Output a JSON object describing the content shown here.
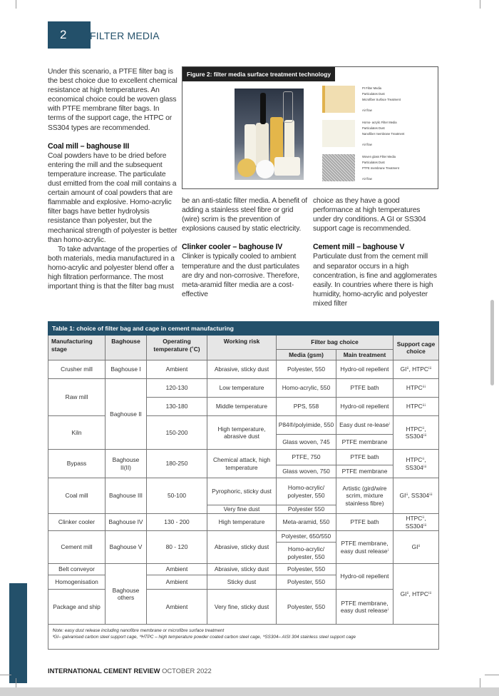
{
  "header": {
    "page_number": "2",
    "section": "FILTER MEDIA"
  },
  "col1": {
    "p1": "Under this scenario, a PTFE filter bag is the best choice due to excellent chemical resistance at high temperatures. An economical choice could be woven glass with PTFE membrane filter bags. In terms of the support cage, the HTPC or SS304 types are recommended.",
    "h_coal": "Coal mill – baghouse III",
    "p2": "Coal powders have to be dried before entering the mill and the subsequent temperature increase. The particulate dust emitted from the coal mill contains a certain amount of coal powders that are flammable and explosive. Homo-acrylic filter bags have better hydrolysis resistance than polyester, but the mechanical strength of polyester is better than homo-acrylic.",
    "p3": "To take advantage of the properties of both materials, media manufactured in a homo-acrylic and polyester blend offer a high filtration performance. The most important thing is that the filter bag must"
  },
  "col2": {
    "p1": "be an anti-static filter media. A benefit of adding a stainless steel fibre or grid (wire) scrim is the prevention of explosions caused by static electricity.",
    "h_clinker": "Clinker cooler – baghouse IV",
    "p2": "Clinker is typically cooled to ambient temperature and the dust particulates are dry and non-corrosive. Therefore, meta-aramid filter media are a cost-effective"
  },
  "col3": {
    "p1": "choice as they have a good performance at high temperatures under dry conditions. A GI or SS304 support cage is recommended.",
    "h_cement": "Cement mill – baghouse V",
    "p2": "Particulate dust from the cement mill and separator occurs in a high concentration, is fine and agglomerates easily. In countries where there is high humidity, homo-acrylic and polyester mixed filter"
  },
  "figure": {
    "caption": "Figure 2: filter media surface treatment technology",
    "layers": [
      {
        "labels": [
          "PI Filter Media",
          "Particulates Dust",
          "Microfiber Surface Treatment"
        ],
        "airflow": "Air flow"
      },
      {
        "labels": [
          "Homo- acrylic Filter Media",
          "Particulates Dust",
          "Nanofiber membrane Treatment"
        ],
        "airflow": "Air flow"
      },
      {
        "labels": [
          "Woven glass Filter Media",
          "Particulates Dust",
          "PTFE membrane Treatment"
        ],
        "airflow": "Air flow"
      }
    ]
  },
  "table": {
    "title": "Table 1: choice of filter bag and cage in cement manufacturing",
    "headers": {
      "stage": "Manufacturing stage",
      "baghouse": "Baghouse",
      "temp": "Operating temperature (˚C)",
      "risk": "Working risk",
      "filter": "Filter bag choice",
      "media": "Media (gsm)",
      "treatment": "Main treatment",
      "cage": "Support cage choice"
    },
    "crusher": {
      "stage": "Crusher mill",
      "baghouse": "Baghouse I",
      "temp": "Ambient",
      "risk": "Abrasive, sticky dust",
      "media": "Polyester, 550",
      "treatment": "Hydro-oil repellent",
      "cage": "GIⁱⁱ, HTPCⁱⁱⁱ"
    },
    "raw": {
      "stage": "Raw mill",
      "baghouse": "Baghouse II",
      "temp1": "120-130",
      "risk1": "Low temperature",
      "media1": "Homo-acrylic, 550",
      "treatment1": "PTFE bath",
      "cage1": "HTPCⁱⁱⁱ",
      "temp2": "130-180",
      "risk2": "Middle temperature",
      "media2": "PPS, 558",
      "treatment2": "Hydro-oil repellent",
      "cage2": "HTPCⁱⁱⁱ"
    },
    "kiln": {
      "stage": "Kiln",
      "temp": "150-200",
      "risk": "High temperature, abrasive dust",
      "media1": "P84®/polyimide, 550",
      "treatment1": "Easy dust re-leaseⁱ",
      "media2": "Glass woven, 745",
      "treatment2": "PTFE membrane",
      "cage": "HTPCⁱⁱ, SS304ⁱⁱⁱ"
    },
    "bypass": {
      "stage": "Bypass",
      "baghouse": "Baghouse II(II)",
      "temp": "180-250",
      "risk": "Chemical attack, high temperature",
      "media1": "PTFE, 750",
      "treatment1": "PTFE bath",
      "media2": "Glass woven, 750",
      "treatment2": "PTFE membrane",
      "cage": "HTPCⁱⁱ, SS304ⁱⁱⁱ"
    },
    "coal": {
      "stage": "Coal mill",
      "baghouse": "Baghouse III",
      "temp": "50-100",
      "risk1": "Pyrophoric, sticky dust",
      "media1": "Homo-acrylic/ polyester, 550",
      "risk2": "Very fine dust",
      "media2": "Polyester 550",
      "treatment": "Artistic (gird/wire scrim, mixture stainless fibre)",
      "cage": "GIⁱⁱ, SS304ⁱⁱⁱ"
    },
    "clinker": {
      "stage": "Clinker cooler",
      "baghouse": "Baghouse IV",
      "temp": "130 - 200",
      "risk": "High temperature",
      "media": "Meta-aramid, 550",
      "treatment": "PTFE bath",
      "cage": "HTPCⁱⁱ, SS304ⁱⁱⁱ"
    },
    "cement": {
      "stage": "Cement mill",
      "baghouse": "Baghouse V",
      "temp": "80 - 120",
      "risk": "Abrasive, sticky dust",
      "media1": "Polyester, 650/550",
      "media2": "Homo-acrylic/ polyester, 550",
      "treatment": "PTFE membrane, easy dust releaseⁱ",
      "cage": "GIⁱⁱ"
    },
    "others": {
      "baghouse": "Baghouse others",
      "cage": "GIⁱⁱ, HTPCⁱⁱⁱ",
      "treatment12": "Hydro-oil repellent",
      "belt": {
        "stage": "Belt conveyor",
        "temp": "Ambient",
        "risk": "Abrasive, sticky dust",
        "media": "Polyester, 550"
      },
      "homog": {
        "stage": "Homogenisation",
        "temp": "Ambient",
        "risk": "Sticky dust",
        "media": "Polyester, 550"
      },
      "package": {
        "stage": "Package and ship",
        "temp": "Ambient",
        "risk": "Very fine, sticky dust",
        "media": "Polyester, 550",
        "treatment": "PTFE membrane, easy dust releaseⁱ"
      }
    },
    "note1": "ⁱNote: easy dust release including nanofibre membrane or microfibre surface treatment",
    "note2": "ⁱⁱGI– galvanised carbon steel support cage, ⁱⁱⁱHTPC – high temperature powder coated carbon steel cage, ⁱⁱⁱSS304– AISI 304 stainless steel support cage"
  },
  "footer": {
    "publication": "INTERNATIONAL CEMENT REVIEW",
    "date": "OCTOBER 2022"
  },
  "colors": {
    "accent": "#23506a"
  }
}
